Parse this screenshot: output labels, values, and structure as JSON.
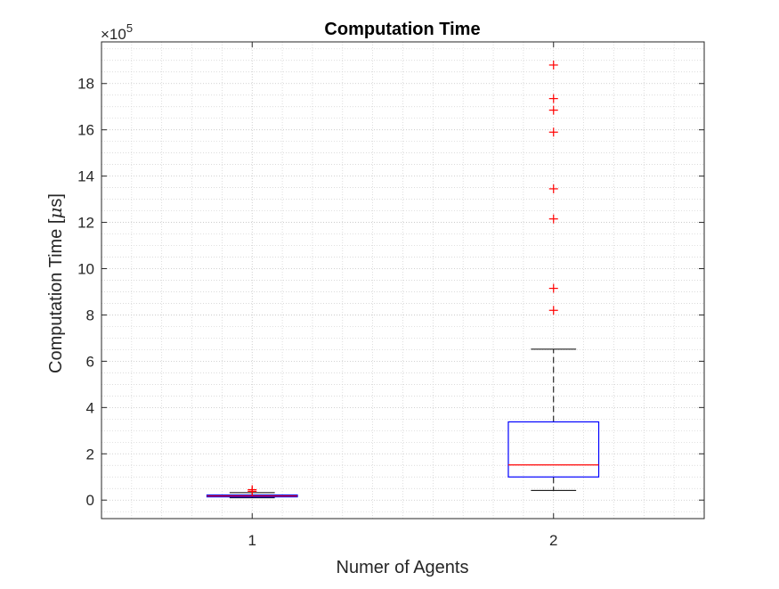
{
  "chart_data": {
    "type": "box",
    "title": "Computation Time",
    "xlabel": "Numer of Agents",
    "ylabel_prefix": "Computation Time [",
    "ylabel_mu": "μ",
    "ylabel_suffix": "s]",
    "y_exponent_base": "×10",
    "y_exponent_power": "5",
    "y_scale": 100000,
    "categories": [
      "1",
      "2"
    ],
    "xlim": [
      0.5,
      2.5
    ],
    "ylim": [
      -0.8,
      19.8
    ],
    "yticks": [
      0,
      2,
      4,
      6,
      8,
      10,
      12,
      14,
      16,
      18
    ],
    "grid": true,
    "minor_grid": true,
    "colors": {
      "box": "#0000ff",
      "median": "#ff0000",
      "whisker": "#000000",
      "outlier": "#ff0000",
      "axes": "#262626",
      "grid": "#d0d0d0"
    },
    "boxes": [
      {
        "category": "1",
        "min": 0.1,
        "q1": 0.14,
        "median": 0.18,
        "q3": 0.22,
        "max": 0.32,
        "outliers": [
          0.38,
          0.45
        ]
      },
      {
        "category": "2",
        "min": 0.42,
        "q1": 1.0,
        "median": 1.52,
        "q3": 3.38,
        "max": 6.52,
        "outliers": [
          8.2,
          9.15,
          12.15,
          13.45,
          15.9,
          16.85,
          17.35,
          18.8
        ]
      }
    ]
  }
}
